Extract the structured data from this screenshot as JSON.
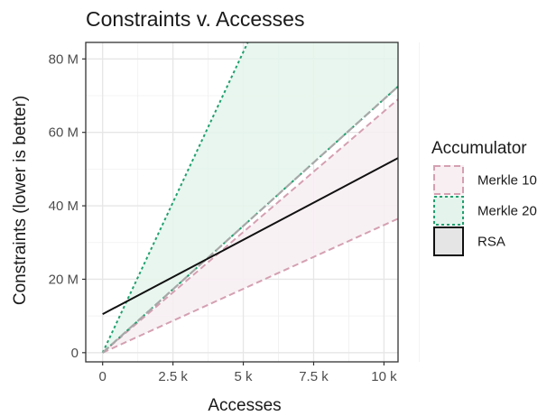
{
  "chart_data": {
    "type": "area",
    "title": "Constraints v. Accesses",
    "xlabel": "Accesses",
    "ylabel": "Constraints (lower is better)",
    "xlim": [
      -600,
      10500
    ],
    "ylim": [
      -2500000,
      84500000
    ],
    "x_ticks": [
      0,
      2500,
      5000,
      7500,
      10000
    ],
    "x_tick_labels": [
      "0",
      "2.5 k",
      "5 k",
      "7.5 k",
      "10 k"
    ],
    "y_ticks": [
      0,
      20000000,
      40000000,
      60000000,
      80000000
    ],
    "y_tick_labels": [
      "0",
      "20 M",
      "40 M",
      "60 M",
      "80 M"
    ],
    "grid": true,
    "legend_title": "Accumulator",
    "legend_position": "right",
    "series": [
      {
        "name": "Merkle 10",
        "kind": "band",
        "x": [
          0,
          10500
        ],
        "lower": [
          0,
          36500000
        ],
        "upper": [
          0,
          69000000
        ],
        "fill": "#f7eff2",
        "line_color": "#d4a0b2",
        "line_style": "dashed"
      },
      {
        "name": "Merkle 20",
        "kind": "band",
        "x": [
          0,
          10500
        ],
        "lower": [
          0,
          72500000
        ],
        "upper": [
          0,
          172000000
        ],
        "fill": "#e4f4ec",
        "line_color": "#21a06f",
        "line_style": "dotted"
      },
      {
        "name": "RSA",
        "kind": "line",
        "x": [
          0,
          10500
        ],
        "y": [
          10500000,
          53000000
        ],
        "fill": "#e5e5e5",
        "line_color": "#111111",
        "line_style": "solid"
      }
    ]
  }
}
